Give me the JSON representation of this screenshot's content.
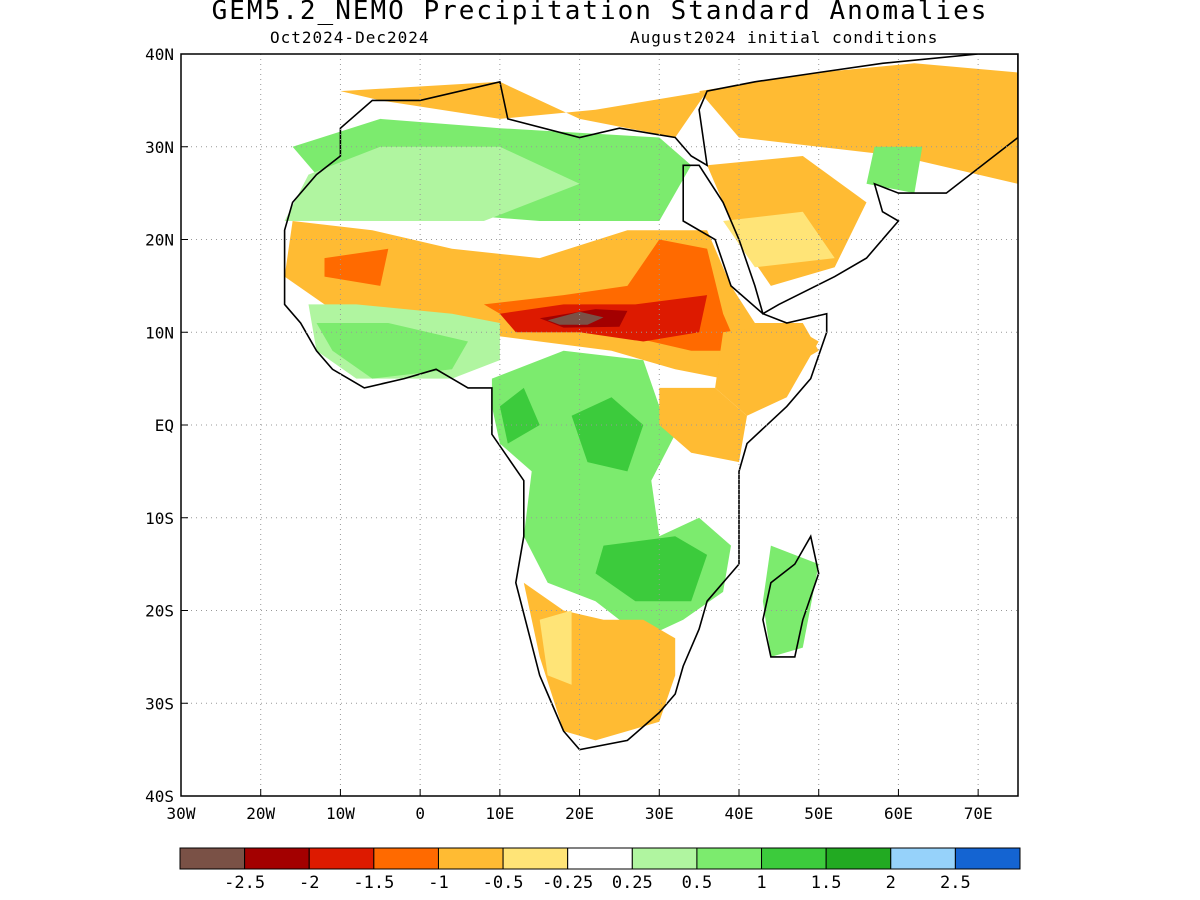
{
  "title": "GEM5.2_NEMO Precipitation Standard Anomalies",
  "subtitle_left": "Oct2024-Dec2024",
  "subtitle_right": "August2024 initial conditions",
  "map": {
    "lon_range": [
      -30,
      75
    ],
    "lat_range": [
      -40,
      40
    ],
    "lon_ticks": [
      {
        "v": -30,
        "label": "30W"
      },
      {
        "v": -20,
        "label": "20W"
      },
      {
        "v": -10,
        "label": "10W"
      },
      {
        "v": 0,
        "label": "0"
      },
      {
        "v": 10,
        "label": "10E"
      },
      {
        "v": 20,
        "label": "20E"
      },
      {
        "v": 30,
        "label": "30E"
      },
      {
        "v": 40,
        "label": "40E"
      },
      {
        "v": 50,
        "label": "50E"
      },
      {
        "v": 60,
        "label": "60E"
      },
      {
        "v": 70,
        "label": "70E"
      }
    ],
    "lat_ticks": [
      {
        "v": 40,
        "label": "40N"
      },
      {
        "v": 30,
        "label": "30N"
      },
      {
        "v": 20,
        "label": "20N"
      },
      {
        "v": 10,
        "label": "10N"
      },
      {
        "v": 0,
        "label": "EQ"
      },
      {
        "v": -10,
        "label": "10S"
      },
      {
        "v": -20,
        "label": "20S"
      },
      {
        "v": -30,
        "label": "30S"
      },
      {
        "v": -40,
        "label": "40S"
      }
    ],
    "grid": "dotted"
  },
  "colorbar": {
    "colors": [
      "#7a5146",
      "#a30000",
      "#dd1a00",
      "#ff6a00",
      "#ffbb33",
      "#ffe477",
      "#ffffff",
      "#b0f5a0",
      "#7ceb6e",
      "#3ccb3c",
      "#22aa22",
      "#96d2fa",
      "#1464d2"
    ],
    "labels": [
      "-2.5",
      "-2",
      "-1.5",
      "-1",
      "-0.5",
      "-0.25",
      "0.25",
      "0.5",
      "1",
      "1.5",
      "2",
      "2.5"
    ]
  },
  "anomaly_patches": [
    {
      "cat": 4,
      "pts": [
        [
          -10,
          36
        ],
        [
          10,
          37
        ],
        [
          20,
          33
        ],
        [
          32,
          31
        ],
        [
          36,
          36
        ],
        [
          22,
          34
        ],
        [
          10,
          33
        ],
        [
          -5,
          35
        ]
      ]
    },
    {
      "cat": 4,
      "pts": [
        [
          35,
          36
        ],
        [
          50,
          38
        ],
        [
          62,
          39
        ],
        [
          75,
          38
        ],
        [
          75,
          26
        ],
        [
          60,
          29
        ],
        [
          50,
          30
        ],
        [
          40,
          31
        ]
      ]
    },
    {
      "cat": 8,
      "pts": [
        [
          57,
          30
        ],
        [
          63,
          30
        ],
        [
          62,
          25
        ],
        [
          56,
          26
        ]
      ]
    },
    {
      "cat": 8,
      "pts": [
        [
          -16,
          30
        ],
        [
          -5,
          33
        ],
        [
          10,
          32
        ],
        [
          30,
          31
        ],
        [
          34,
          28
        ],
        [
          30,
          22
        ],
        [
          15,
          22
        ],
        [
          0,
          23
        ],
        [
          -13,
          27
        ]
      ]
    },
    {
      "cat": 7,
      "pts": [
        [
          -17,
          22
        ],
        [
          -14,
          27
        ],
        [
          -5,
          30
        ],
        [
          10,
          30
        ],
        [
          20,
          26
        ],
        [
          8,
          22
        ],
        [
          -5,
          22
        ]
      ]
    },
    {
      "cat": 4,
      "pts": [
        [
          36,
          28
        ],
        [
          48,
          29
        ],
        [
          56,
          24
        ],
        [
          52,
          17
        ],
        [
          44,
          15
        ],
        [
          40,
          20
        ]
      ]
    },
    {
      "cat": 5,
      "pts": [
        [
          38,
          22
        ],
        [
          48,
          23
        ],
        [
          52,
          18
        ],
        [
          42,
          17
        ]
      ]
    },
    {
      "cat": 4,
      "pts": [
        [
          -16,
          22
        ],
        [
          -6,
          21
        ],
        [
          4,
          19
        ],
        [
          15,
          18
        ],
        [
          26,
          21
        ],
        [
          36,
          21
        ],
        [
          39,
          15
        ],
        [
          42,
          11
        ],
        [
          48,
          11
        ],
        [
          50,
          8
        ],
        [
          44,
          5
        ],
        [
          38,
          5
        ],
        [
          32,
          6
        ],
        [
          24,
          8
        ],
        [
          15,
          9
        ],
        [
          6,
          10
        ],
        [
          -2,
          11
        ],
        [
          -12,
          13
        ],
        [
          -17,
          16
        ]
      ]
    },
    {
      "cat": 3,
      "pts": [
        [
          -12,
          18
        ],
        [
          -4,
          19
        ],
        [
          -5,
          15
        ],
        [
          -12,
          16
        ]
      ]
    },
    {
      "cat": 3,
      "pts": [
        [
          8,
          13
        ],
        [
          18,
          14
        ],
        [
          26,
          15
        ],
        [
          30,
          20
        ],
        [
          36,
          19
        ],
        [
          38,
          12
        ],
        [
          40,
          8
        ],
        [
          34,
          8
        ],
        [
          24,
          10
        ],
        [
          14,
          10
        ]
      ]
    },
    {
      "cat": 2,
      "pts": [
        [
          10,
          12
        ],
        [
          18,
          13
        ],
        [
          27,
          13
        ],
        [
          36,
          14
        ],
        [
          35,
          10
        ],
        [
          28,
          9
        ],
        [
          20,
          10
        ],
        [
          12,
          10
        ]
      ]
    },
    {
      "cat": 1,
      "pts": [
        [
          15,
          11.5
        ],
        [
          22,
          12.5
        ],
        [
          26,
          12.3
        ],
        [
          25,
          10.6
        ],
        [
          18,
          10.5
        ]
      ]
    },
    {
      "cat": 0,
      "pts": [
        [
          16,
          11.3
        ],
        [
          20,
          12.2
        ],
        [
          23,
          11.6
        ],
        [
          21,
          10.8
        ],
        [
          17.5,
          10.8
        ]
      ]
    },
    {
      "cat": 7,
      "pts": [
        [
          -14,
          13
        ],
        [
          -8,
          13
        ],
        [
          4,
          12
        ],
        [
          10,
          11
        ],
        [
          10,
          7
        ],
        [
          4,
          5
        ],
        [
          -8,
          5
        ],
        [
          -13,
          8
        ]
      ]
    },
    {
      "cat": 8,
      "pts": [
        [
          -13,
          11
        ],
        [
          -4,
          11
        ],
        [
          6,
          9
        ],
        [
          4,
          6
        ],
        [
          -6,
          5
        ],
        [
          -11,
          8
        ]
      ]
    },
    {
      "cat": 8,
      "pts": [
        [
          9,
          5
        ],
        [
          18,
          8
        ],
        [
          28,
          7
        ],
        [
          30,
          2
        ],
        [
          32,
          -1
        ],
        [
          29,
          -6
        ],
        [
          30,
          -12
        ],
        [
          35,
          -10
        ],
        [
          39,
          -13
        ],
        [
          38,
          -18
        ],
        [
          33,
          -21
        ],
        [
          28,
          -23
        ],
        [
          22,
          -19
        ],
        [
          16,
          -17
        ],
        [
          13,
          -12
        ],
        [
          14,
          -5
        ],
        [
          10,
          -2
        ],
        [
          9,
          2
        ]
      ]
    },
    {
      "cat": 9,
      "pts": [
        [
          19,
          1
        ],
        [
          24,
          3
        ],
        [
          28,
          0
        ],
        [
          26,
          -5
        ],
        [
          21,
          -4
        ]
      ]
    },
    {
      "cat": 9,
      "pts": [
        [
          23,
          -13
        ],
        [
          32,
          -12
        ],
        [
          36,
          -14
        ],
        [
          34,
          -19
        ],
        [
          27,
          -19
        ],
        [
          22,
          -16
        ]
      ]
    },
    {
      "cat": 9,
      "pts": [
        [
          10,
          2
        ],
        [
          13,
          4
        ],
        [
          15,
          0
        ],
        [
          11,
          -2
        ]
      ]
    },
    {
      "cat": 4,
      "pts": [
        [
          30,
          4
        ],
        [
          37,
          4
        ],
        [
          41,
          1
        ],
        [
          40,
          -4
        ],
        [
          34,
          -3
        ],
        [
          30,
          0
        ]
      ]
    },
    {
      "cat": 4,
      "pts": [
        [
          38,
          10
        ],
        [
          46,
          11
        ],
        [
          50,
          9
        ],
        [
          46,
          3
        ],
        [
          41,
          1
        ],
        [
          37,
          4
        ]
      ]
    },
    {
      "cat": 4,
      "pts": [
        [
          13,
          -17
        ],
        [
          18,
          -20
        ],
        [
          23,
          -21
        ],
        [
          28,
          -21
        ],
        [
          32,
          -23
        ],
        [
          32,
          -27
        ],
        [
          30,
          -32
        ],
        [
          22,
          -34
        ],
        [
          18,
          -33
        ],
        [
          15,
          -25
        ]
      ]
    },
    {
      "cat": 5,
      "pts": [
        [
          15,
          -21
        ],
        [
          19,
          -20
        ],
        [
          19,
          -28
        ],
        [
          16,
          -27
        ]
      ]
    },
    {
      "cat": 8,
      "pts": [
        [
          44,
          -13
        ],
        [
          50,
          -15
        ],
        [
          48,
          -24
        ],
        [
          44,
          -25
        ],
        [
          43,
          -19
        ]
      ]
    }
  ],
  "coastline": [
    [
      -17,
      21
    ],
    [
      -16,
      24
    ],
    [
      -13,
      27
    ],
    [
      -10,
      29
    ],
    [
      -10,
      32
    ],
    [
      -6,
      35
    ],
    [
      0,
      35
    ],
    [
      10,
      37
    ],
    [
      11,
      33
    ],
    [
      20,
      31
    ],
    [
      25,
      32
    ],
    [
      32,
      31
    ],
    [
      34,
      29
    ],
    [
      36,
      28
    ],
    [
      35,
      34
    ],
    [
      36,
      36
    ],
    [
      42,
      37
    ],
    [
      50,
      38
    ],
    [
      58,
      39
    ],
    [
      70,
      40
    ],
    [
      75,
      40
    ],
    [
      75,
      31
    ],
    [
      66,
      25
    ],
    [
      60,
      25
    ],
    [
      57,
      26
    ],
    [
      58,
      23
    ],
    [
      60,
      22
    ],
    [
      56,
      18
    ],
    [
      52,
      16
    ],
    [
      45,
      13
    ],
    [
      43,
      12
    ],
    [
      42,
      15
    ],
    [
      40,
      20
    ],
    [
      38,
      24
    ],
    [
      35,
      28
    ],
    [
      33,
      28
    ],
    [
      33,
      22
    ],
    [
      37,
      20
    ],
    [
      39,
      15
    ],
    [
      43,
      12
    ],
    [
      46,
      11
    ],
    [
      51,
      12
    ],
    [
      51,
      10
    ],
    [
      49,
      5
    ],
    [
      46,
      2
    ],
    [
      41,
      -2
    ],
    [
      40,
      -5
    ],
    [
      40,
      -10
    ],
    [
      40,
      -15
    ],
    [
      36,
      -19
    ],
    [
      35,
      -22
    ],
    [
      33,
      -26
    ],
    [
      32,
      -29
    ],
    [
      30,
      -31
    ],
    [
      26,
      -34
    ],
    [
      20,
      -35
    ],
    [
      18,
      -33
    ],
    [
      16,
      -29
    ],
    [
      15,
      -27
    ],
    [
      12,
      -17
    ],
    [
      13,
      -12
    ],
    [
      13,
      -6
    ],
    [
      9,
      -1
    ],
    [
      9,
      4
    ],
    [
      6,
      4
    ],
    [
      2,
      6
    ],
    [
      -2,
      5
    ],
    [
      -7,
      4
    ],
    [
      -11,
      6
    ],
    [
      -13,
      8
    ],
    [
      -15,
      11
    ],
    [
      -17,
      13
    ],
    [
      -17,
      15
    ],
    [
      -17,
      21
    ]
  ],
  "madagascar": [
    [
      49,
      -12
    ],
    [
      50,
      -16
    ],
    [
      48,
      -21
    ],
    [
      47,
      -25
    ],
    [
      44,
      -25
    ],
    [
      43,
      -21
    ],
    [
      44,
      -17
    ],
    [
      47,
      -15
    ]
  ]
}
